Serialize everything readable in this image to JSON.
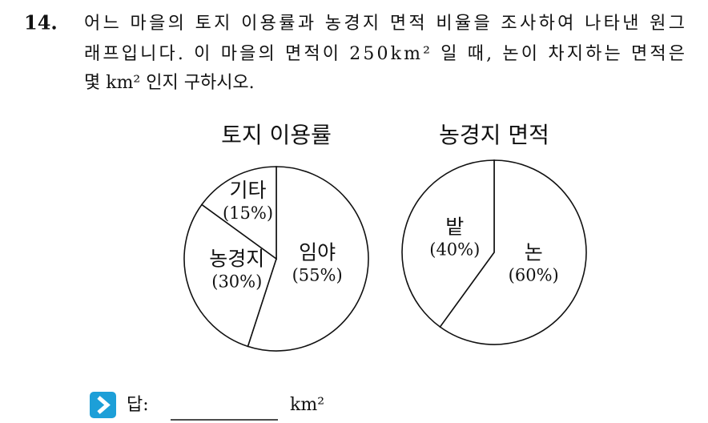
{
  "question": {
    "number": "14.",
    "lines": [
      "어느 마을의 토지 이용률과 농경지 면적 비율을 조사하여 나타낸 원그",
      "래프입니다. 이 마을의 면적이 250km² 일 때, 논이 차지하는 면적은",
      "몇 km² 인지 구하시오."
    ]
  },
  "chart_data": [
    {
      "type": "pie",
      "title": "토지 이용률",
      "categories": [
        "임야",
        "농경지",
        "기타"
      ],
      "values": [
        55,
        30,
        15
      ],
      "value_labels": [
        "(55%)",
        "(30%)",
        "(15%)"
      ]
    },
    {
      "type": "pie",
      "title": "농경지 면적",
      "categories": [
        "논",
        "밭"
      ],
      "values": [
        60,
        40
      ],
      "value_labels": [
        "(60%)",
        "(40%)"
      ]
    }
  ],
  "answer": {
    "label": "답:",
    "unit": "km²"
  }
}
